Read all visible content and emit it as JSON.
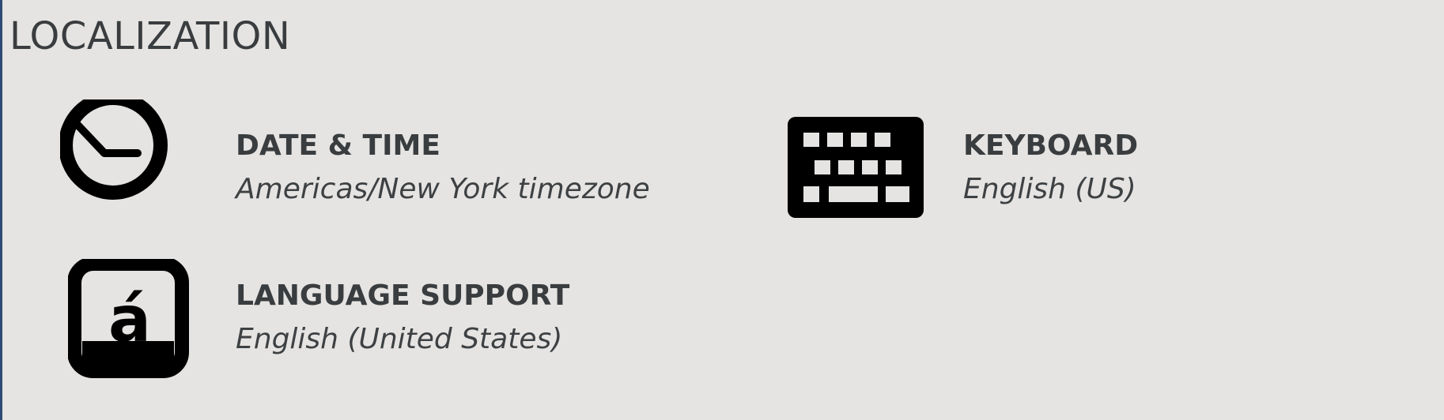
{
  "section": {
    "title": "LOCALIZATION"
  },
  "spokes": {
    "date_time": {
      "title": "DATE & TIME",
      "status": "Americas/New York timezone",
      "icon": "clock-icon"
    },
    "keyboard": {
      "title": "KEYBOARD",
      "status": "English (US)",
      "icon": "keyboard-icon"
    },
    "language_support": {
      "title": "LANGUAGE SUPPORT",
      "status": "English (United States)",
      "icon": "language-icon",
      "icon_glyph": "á"
    }
  },
  "colors": {
    "background": "#e5e4e2",
    "text": "#3a3d3f",
    "icon": "#000000",
    "left_edge": "#2f4a74"
  }
}
